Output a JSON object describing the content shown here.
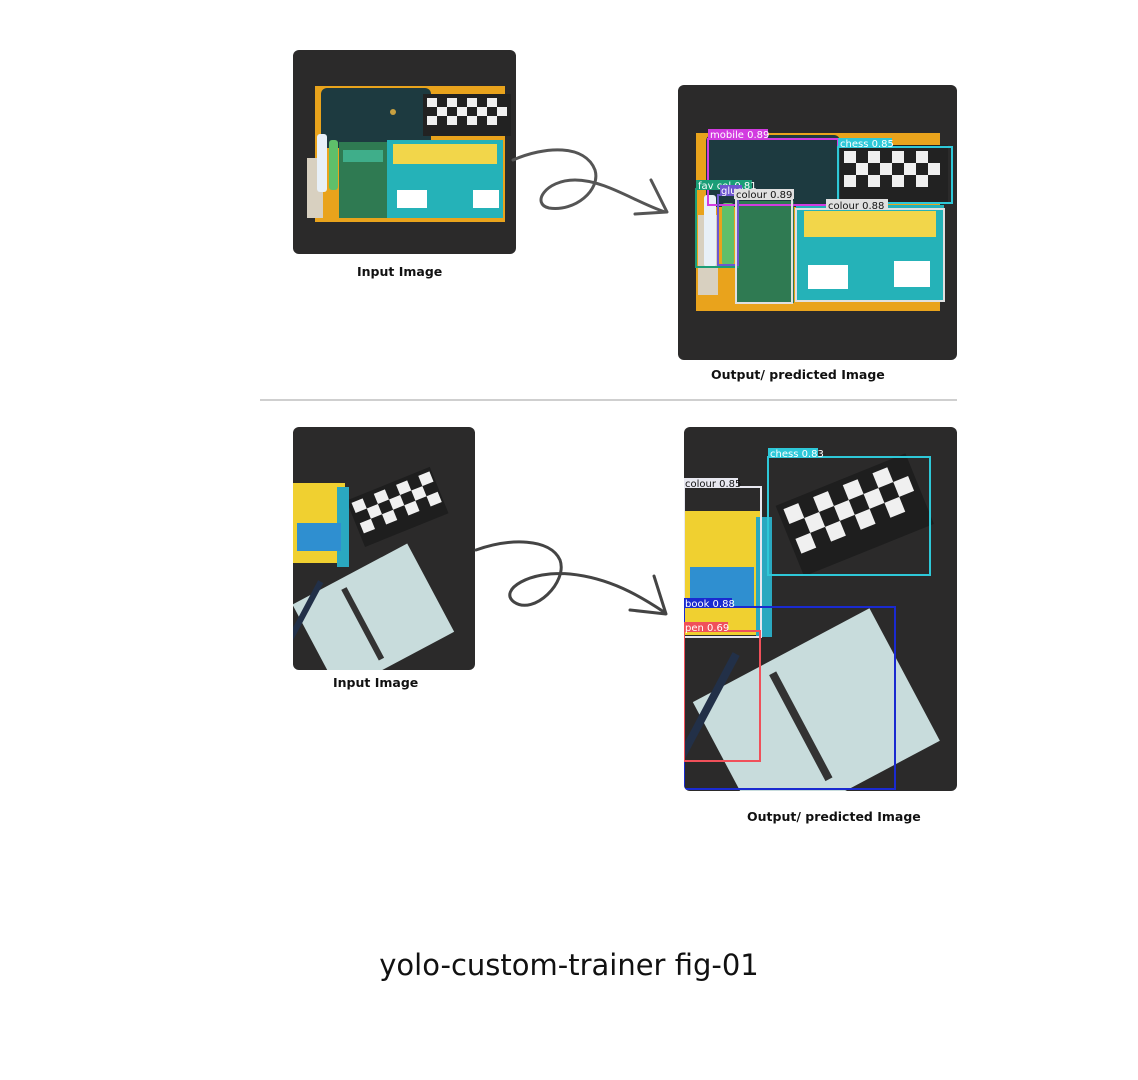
{
  "example1": {
    "input_caption": "Input Image",
    "output_caption": "Output/ predicted Image",
    "detections": [
      {
        "label": "mobile 0.89",
        "color": "#d23be0"
      },
      {
        "label": "chess 0.85",
        "color": "#2ec8d8"
      },
      {
        "label": "fav col 0.81",
        "color": "#1b9e77"
      },
      {
        "label": "glue",
        "color": "#6e56cf"
      },
      {
        "label": "colour 0.89",
        "color": "#e0e0e0"
      },
      {
        "label": "colour 0.88",
        "color": "#e0e0e0"
      }
    ]
  },
  "example2": {
    "input_caption": "Input Image",
    "output_caption": "Output/ predicted Image",
    "detections": [
      {
        "label": "chess 0.83",
        "color": "#2ec8d8"
      },
      {
        "label": "colour 0.85",
        "color": "#e8e8f0"
      },
      {
        "label": "book 0.88",
        "color": "#1a2ad0"
      },
      {
        "label": "pen 0.69",
        "color": "#f0505a"
      }
    ]
  },
  "figure_title": "yolo-custom-trainer fig-01"
}
